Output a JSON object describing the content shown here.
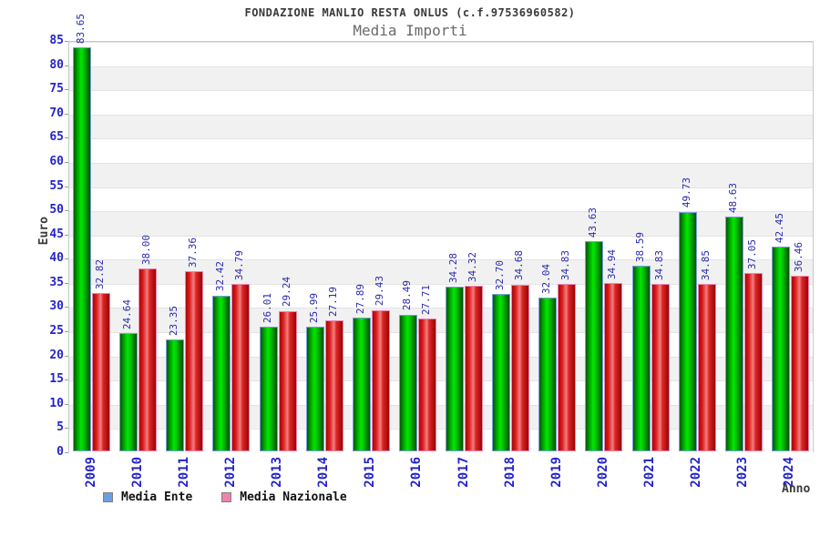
{
  "chart_data": {
    "type": "bar",
    "title": "FONDAZIONE MANLIO RESTA ONLUS (c.f.97536960582)",
    "subtitle": "Media Importi",
    "xlabel": "Anno",
    "ylabel": "Euro",
    "ylim": [
      0,
      85
    ],
    "ytick_step": 5,
    "grid": "horizontal gridline every 5 units with alternating white/gray bands",
    "legend_position": "bottom-left",
    "value_label_format": "2 decimals, rotated 90deg above each bar",
    "categories": [
      "2009",
      "2010",
      "2011",
      "2012",
      "2013",
      "2014",
      "2015",
      "2016",
      "2017",
      "2018",
      "2019",
      "2020",
      "2021",
      "2022",
      "2023",
      "2024"
    ],
    "series": [
      {
        "name": "Media Ente",
        "bar_color": "#00cc00",
        "legend_swatch_color": "#6d9ee0",
        "values": [
          83.65,
          24.64,
          23.35,
          32.42,
          26.01,
          25.99,
          27.89,
          28.49,
          34.28,
          32.7,
          32.04,
          43.63,
          38.59,
          49.73,
          48.63,
          42.45
        ]
      },
      {
        "name": "Media Nazionale",
        "bar_color": "#e03030",
        "legend_swatch_color": "#ee82ac",
        "values": [
          32.82,
          38.0,
          37.36,
          34.79,
          29.24,
          27.19,
          29.43,
          27.71,
          34.32,
          34.68,
          34.83,
          34.94,
          34.83,
          34.85,
          37.05,
          36.46
        ]
      }
    ]
  },
  "colors": {
    "axis_tick_text": "#2424cc",
    "value_label_text": "#2a2aae",
    "title_text": "#3a3a3a",
    "subtitle_text": "#6a6a6a",
    "band_gray": "#f1f1f1",
    "gridline": "#e4e4e4",
    "plot_border": "#c9c9c9",
    "bar_ente_outline": "#7d9ede",
    "bar_nazionale_outline": "#ee86ae"
  }
}
